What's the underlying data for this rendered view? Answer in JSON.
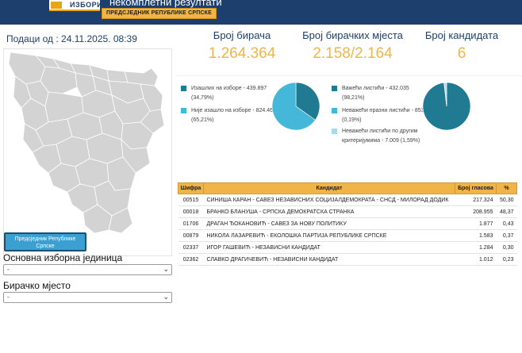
{
  "header": {
    "logo_text": "ИЗБОРИ",
    "title": "некомплетни резултати",
    "election_badge": "ПРЕДСЈЕДНИК РЕПУБЛИКЕ СРПСКЕ"
  },
  "left": {
    "data_as_of": "Подаци од : 24.11.2025. 08:39",
    "zoom_in": "+",
    "zoom_out": "-",
    "election_button": "Предсједник Републике Српске",
    "unit_label": "Основна изборна јединица",
    "unit_select_value": "-",
    "station_label": "Бирачко мјесто",
    "station_select_value": "-"
  },
  "stats": [
    {
      "label": "Број бирача",
      "value": "1.264.364"
    },
    {
      "label": "Број бирачких мјеста",
      "value": "2.158/2.164"
    },
    {
      "label": "Број кандидата",
      "value": "6"
    }
  ],
  "turnout_legend": [
    {
      "text": "Изашлих на изборе - 439.897 (34,79%)",
      "color": "#1f7a92"
    },
    {
      "text": "Није изашло на изборе - 824.467 (65,21%)",
      "color": "#45b7d9"
    }
  ],
  "ballot_legend": [
    {
      "text": "Важећи листићи - 432.035 (98,21%)",
      "color": "#1f7a92"
    },
    {
      "text": "Неважећи празни листићи - 853 (0,19%)",
      "color": "#45b7d9"
    },
    {
      "text": "Неважећи листићи по другим критеријумима - 7.009 (1,59%)",
      "color": "#a9d9ec"
    }
  ],
  "chart_data": [
    {
      "type": "pie",
      "labels": [
        "Изашлих на изборе",
        "Није изашло на изборе"
      ],
      "values": [
        34.79,
        65.21
      ],
      "colors": [
        "#1f7a92",
        "#45b7d9"
      ]
    },
    {
      "type": "pie",
      "labels": [
        "Важећи листићи",
        "Неважећи празни листићи",
        "Неважећи листићи по другим критеријумима"
      ],
      "values": [
        98.21,
        0.19,
        1.59
      ],
      "colors": [
        "#1f7a92",
        "#45b7d9",
        "#a9d9ec"
      ]
    }
  ],
  "table": {
    "headers": [
      "Шифра",
      "Кандидат",
      "Број гласова",
      "%"
    ],
    "rows": [
      [
        "00515",
        "СИНИША КАРАН - САВЕЗ НЕЗАВИСНИХ СОЦИЈАЛДЕМОКРАТА - СНСД - МИЛОРАД ДОДИК",
        "217.324",
        "50,30"
      ],
      [
        "00018",
        "БРАНКО БЛАНУША - СРПСКА ДЕМОКРАТСКА СТРАНКА",
        "208.955",
        "48,37"
      ],
      [
        "01706",
        "ДРАГАН ЂОКАНОВИЋ - САВЕЗ ЗА НОВУ ПОЛИТИКУ",
        "1.877",
        "0,43"
      ],
      [
        "00879",
        "НИКОЛА ЛАЗАРЕВИЋ - ЕКОЛОШКА ПАРТИЈА РЕПУБЛИКЕ СРПСКЕ",
        "1.583",
        "0,37"
      ],
      [
        "02337",
        "ИГОР ГАШЕВИЋ - НЕЗАВИСНИ КАНДИДАТ",
        "1.284",
        "0,30"
      ],
      [
        "02362",
        "СЛАВКО ДРАГИЧЕВИЋ - НЕЗАВИСНИ КАНДИДАТ",
        "1.012",
        "0,23"
      ]
    ]
  }
}
